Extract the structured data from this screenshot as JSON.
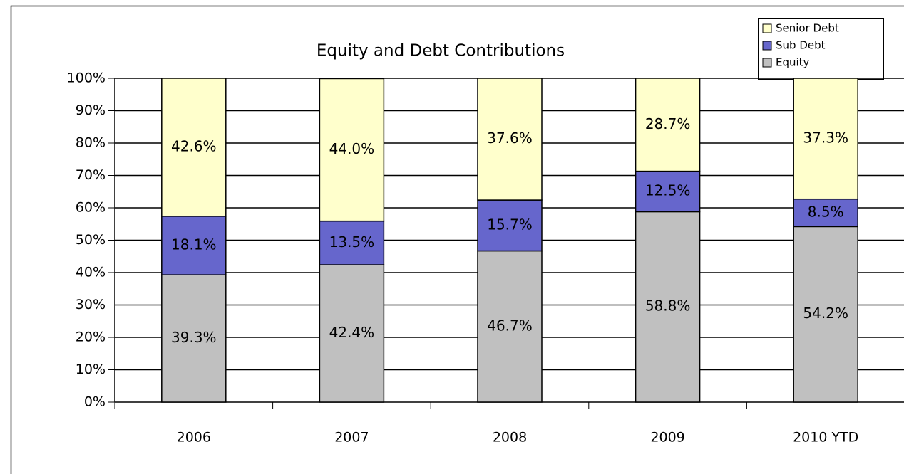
{
  "chart_data": {
    "type": "stacked_bar",
    "title": "Equity and Debt Contributions",
    "categories": [
      "2006",
      "2007",
      "2008",
      "2009",
      "2010 YTD"
    ],
    "series": [
      {
        "name": "Equity",
        "color": "#c0c0c0",
        "values": [
          39.3,
          42.4,
          46.7,
          58.8,
          54.2
        ],
        "value_labels": [
          "39.3%",
          "42.4%",
          "46.7%",
          "58.8%",
          "54.2%"
        ]
      },
      {
        "name": "Sub Debt",
        "color": "#6666cc",
        "values": [
          18.1,
          13.5,
          15.7,
          12.5,
          8.5
        ],
        "value_labels": [
          "18.1%",
          "13.5%",
          "15.7%",
          "12.5%",
          "8.5%"
        ]
      },
      {
        "name": "Senior Debt",
        "color": "#ffffcc",
        "values": [
          42.6,
          44.0,
          37.6,
          28.7,
          37.3
        ],
        "value_labels": [
          "42.6%",
          "44.0%",
          "37.6%",
          "28.7%",
          "37.3%"
        ]
      }
    ],
    "ylim": [
      0,
      100
    ],
    "yticks": [
      {
        "value": 0,
        "label": "0%"
      },
      {
        "value": 10,
        "label": "10%"
      },
      {
        "value": 20,
        "label": "20%"
      },
      {
        "value": 30,
        "label": "30%"
      },
      {
        "value": 40,
        "label": "40%"
      },
      {
        "value": 50,
        "label": "50%"
      },
      {
        "value": 60,
        "label": "60%"
      },
      {
        "value": 70,
        "label": "70%"
      },
      {
        "value": 80,
        "label": "80%"
      },
      {
        "value": 90,
        "label": "90%"
      },
      {
        "value": 100,
        "label": "100%"
      }
    ],
    "grid": true,
    "legend": "top-right"
  }
}
